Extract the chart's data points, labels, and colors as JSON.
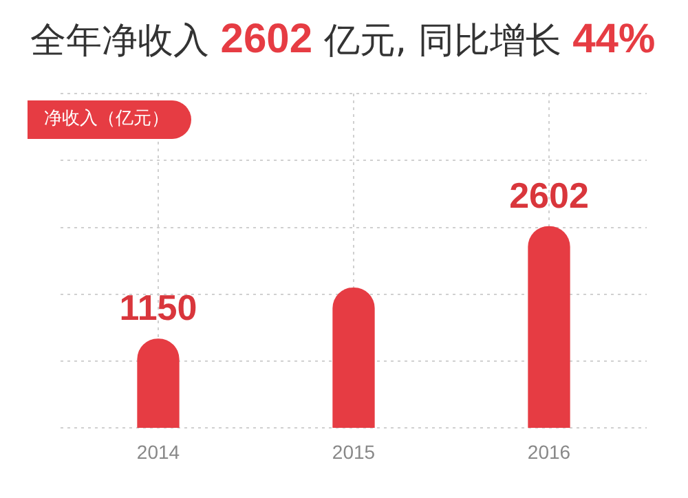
{
  "chart_data": {
    "type": "bar",
    "title": "全年净收入 2602 亿元, 同比增长 44%",
    "categories": [
      "2014",
      "2015",
      "2016"
    ],
    "tick_labels": "x",
    "series": [
      {
        "name": "净收入（亿元）",
        "color": "#e63c43",
        "values": [
          1150,
          1810,
          2602
        ],
        "value_labels": [
          "1150",
          null,
          "2602"
        ]
      }
    ],
    "grid": true,
    "legend": "top left"
  }
}
